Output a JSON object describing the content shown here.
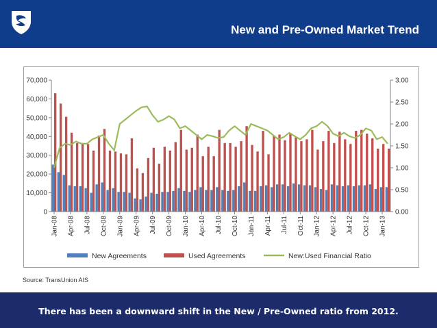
{
  "slide": {
    "title": "New and Pre-Owned Market Trend",
    "source": "Source: TransUnion AIS",
    "summary": "There has been a downward shift in the New / Pre-Owned ratio from 2012.",
    "colors": {
      "header": "#0f3d8c",
      "footer": "#1c2b6b",
      "new": "#4f81bd",
      "used": "#c0504d",
      "ratio": "#9bbb59"
    }
  },
  "chart_data": {
    "type": "bar",
    "title": "",
    "x_labels": [
      "Jan-08",
      "Apr-08",
      "Jul-08",
      "Oct-08",
      "Jan-09",
      "Apr-09",
      "Jul-09",
      "Oct-09",
      "Jan-10",
      "Apr-10",
      "Jul-10",
      "Oct-10",
      "Jan-11",
      "Apr-11",
      "Jul-11",
      "Oct-11",
      "Jan-12",
      "Apr-12",
      "Jul-12",
      "Oct-12",
      "Jan-13"
    ],
    "categories": [
      "Jan-08",
      "Feb-08",
      "Mar-08",
      "Apr-08",
      "May-08",
      "Jun-08",
      "Jul-08",
      "Aug-08",
      "Sep-08",
      "Oct-08",
      "Nov-08",
      "Dec-08",
      "Jan-09",
      "Feb-09",
      "Mar-09",
      "Apr-09",
      "May-09",
      "Jun-09",
      "Jul-09",
      "Aug-09",
      "Sep-09",
      "Oct-09",
      "Nov-09",
      "Dec-09",
      "Jan-10",
      "Feb-10",
      "Mar-10",
      "Apr-10",
      "May-10",
      "Jun-10",
      "Jul-10",
      "Aug-10",
      "Sep-10",
      "Oct-10",
      "Nov-10",
      "Dec-10",
      "Jan-11",
      "Feb-11",
      "Mar-11",
      "Apr-11",
      "May-11",
      "Jun-11",
      "Jul-11",
      "Aug-11",
      "Sep-11",
      "Oct-11",
      "Nov-11",
      "Dec-11",
      "Jan-12",
      "Feb-12",
      "Mar-12",
      "Apr-12",
      "May-12",
      "Jun-12",
      "Jul-12",
      "Aug-12",
      "Sep-12",
      "Oct-12",
      "Nov-12",
      "Dec-12",
      "Jan-13",
      "Feb-13"
    ],
    "y_left": {
      "min": 0,
      "max": 70000,
      "ticks": [
        "0",
        "10,000",
        "20,000",
        "30,000",
        "40,000",
        "50,000",
        "60,000",
        "70,000"
      ]
    },
    "y_right": {
      "min": 0,
      "max": 3,
      "ticks": [
        "0.00",
        "0.50",
        "1.00",
        "1.50",
        "2.00",
        "2.50",
        "3.00"
      ]
    },
    "series": [
      {
        "name": "New Agreements",
        "kind": "bar",
        "axis": "left",
        "values": [
          25000,
          21000,
          19500,
          14000,
          13500,
          13500,
          12500,
          10000,
          14500,
          15500,
          11500,
          12500,
          10500,
          10500,
          10000,
          7000,
          6500,
          8000,
          10000,
          9500,
          10500,
          10500,
          11000,
          12500,
          11000,
          10500,
          11500,
          13000,
          11500,
          11500,
          13000,
          11500,
          11000,
          11500,
          13500,
          15500,
          11000,
          11000,
          13500,
          14000,
          13000,
          14500,
          14500,
          13500,
          15000,
          14500,
          14000,
          14000,
          13000,
          12000,
          11500,
          14500,
          14000,
          13500,
          14000,
          13500,
          14000,
          14000,
          14500,
          12000,
          13000,
          13000
        ]
      },
      {
        "name": "Used Agreements",
        "kind": "bar",
        "axis": "left",
        "values": [
          63000,
          57500,
          50500,
          42000,
          36500,
          36500,
          36000,
          32500,
          40500,
          44000,
          32500,
          32000,
          31000,
          30500,
          39000,
          23000,
          20500,
          28500,
          34000,
          25500,
          34500,
          32500,
          37000,
          43500,
          33000,
          34000,
          41000,
          29500,
          34500,
          29500,
          43500,
          36500,
          36500,
          34500,
          37500,
          45500,
          35500,
          32000,
          43000,
          30500,
          40500,
          41000,
          38000,
          41500,
          39500,
          37500,
          38500,
          43500,
          33000,
          37500,
          43000,
          36500,
          42500,
          38500,
          36000,
          43000,
          43500,
          41500,
          39000,
          33500,
          36000,
          33500
        ]
      },
      {
        "name": "New:Used Financial Ratio",
        "kind": "line",
        "axis": "right",
        "values": [
          1.0,
          1.45,
          1.55,
          1.52,
          1.6,
          1.55,
          1.55,
          1.65,
          1.7,
          1.75,
          1.55,
          1.4,
          2.0,
          2.1,
          2.2,
          2.3,
          2.38,
          2.4,
          2.2,
          2.05,
          2.1,
          2.18,
          2.1,
          1.9,
          1.95,
          1.85,
          1.75,
          1.65,
          1.75,
          1.72,
          1.68,
          1.7,
          1.85,
          1.95,
          1.85,
          1.75,
          2.0,
          1.95,
          1.9,
          1.85,
          1.75,
          1.65,
          1.7,
          1.8,
          1.72,
          1.65,
          1.75,
          1.9,
          1.95,
          2.05,
          1.95,
          1.78,
          1.72,
          1.8,
          1.72,
          1.68,
          1.75,
          1.9,
          1.85,
          1.65,
          1.7,
          1.55
        ]
      }
    ],
    "legend_position": "bottom"
  }
}
